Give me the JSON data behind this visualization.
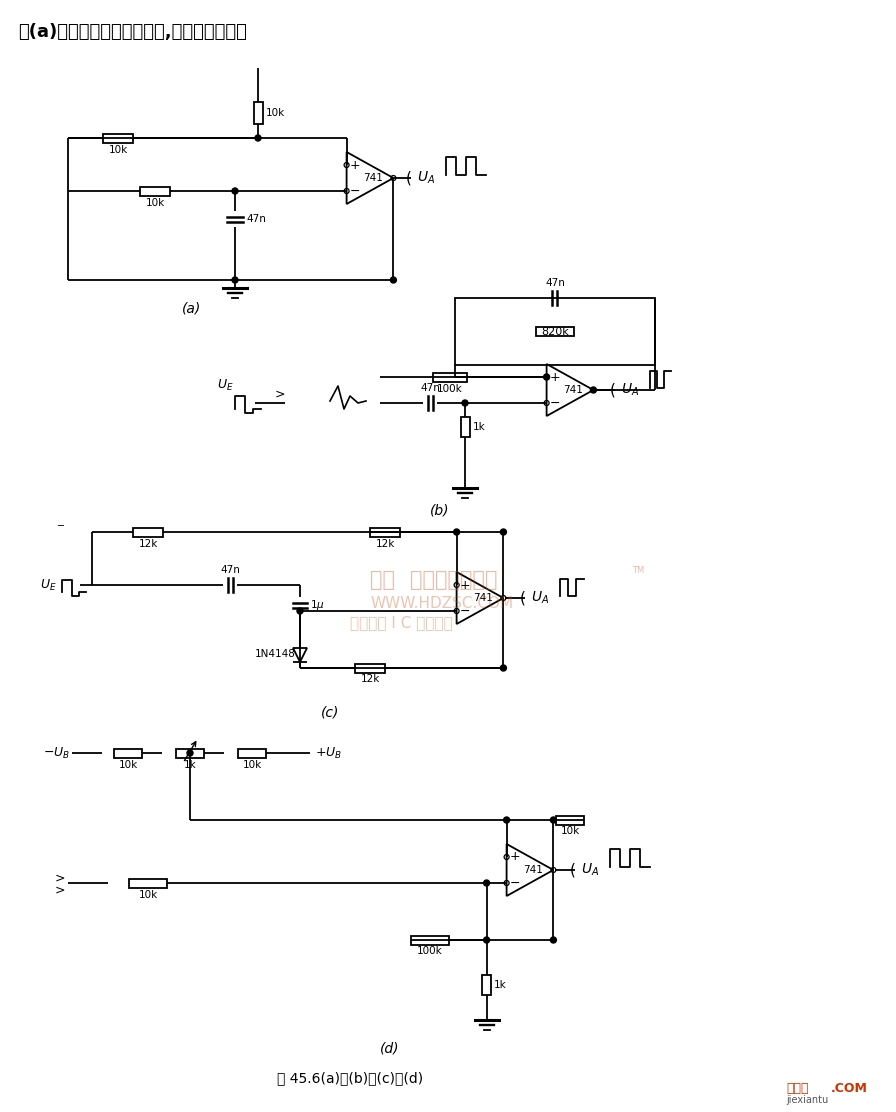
{
  "title_text": "图(a)电路为多谐振荡器电路,产生方波信号，",
  "caption_text": "图 45.6(a)、(b)、(c)、(d)",
  "bg_color": "#ffffff",
  "watermark_line1": "杭州",
  "watermark_line2": "缝库电子市场网",
  "watermark_line3": "WWW.HDZSC.COM",
  "watermark_line4": "全球最大 I C 采购网站",
  "logo_text": "接线图",
  "logo_sub": "jiexiantu",
  "logo_dot": ".COM",
  "logo_color": "#cc3300"
}
